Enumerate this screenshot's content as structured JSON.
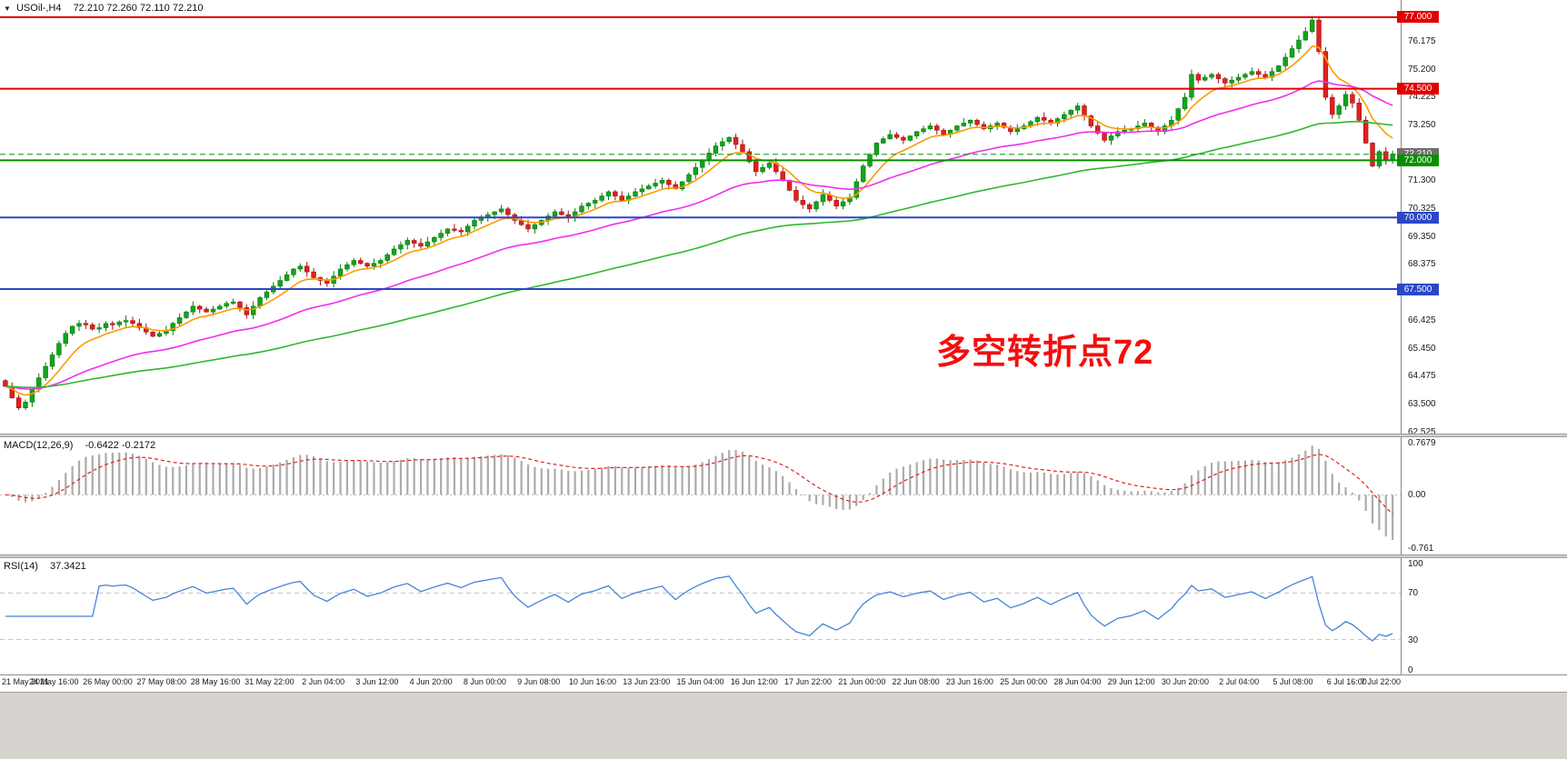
{
  "header": {
    "marker_icon": "▼",
    "symbol": "USOil-,H4",
    "ohlc": "72.210 72.260 72.110 72.210"
  },
  "annotation": {
    "text": "多空转折点72",
    "color": "#f50d0d"
  },
  "panels": {
    "macd": {
      "name": "MACD(12,26,9)",
      "values": "-0.6422 -0.2172",
      "scale": [
        {
          "v": 0.7679,
          "label": "0.7679"
        },
        {
          "v": 0,
          "label": "0.00"
        },
        {
          "v": -0.761,
          "label": "-0.761"
        }
      ],
      "ylim": [
        -0.85,
        0.82
      ]
    },
    "rsi": {
      "name": "RSI(14)",
      "value": "37.3421",
      "period": 14,
      "scale": [
        {
          "v": 100,
          "label": "100"
        },
        {
          "v": 70,
          "label": "70"
        },
        {
          "v": 30,
          "label": "30"
        },
        {
          "v": 0,
          "label": "0"
        }
      ],
      "guides": [
        70,
        30
      ]
    }
  },
  "price_axis": {
    "labels": [
      76.175,
      75.2,
      74.225,
      73.25,
      71.3,
      70.325,
      69.35,
      68.375,
      66.425,
      65.45,
      64.475,
      63.5,
      62.525
    ]
  },
  "chart_data": {
    "type": "candlestick",
    "symbol": "USOil",
    "timeframe": "H4",
    "title": "USOil- H4",
    "ylim": [
      62.45,
      77.6
    ],
    "current_price": 72.21,
    "x_labels": [
      "21 May 2021",
      "24 May 16:00",
      "26 May 00:00",
      "27 May 08:00",
      "28 May 16:00",
      "31 May 22:00",
      "2 Jun 04:00",
      "3 Jun 12:00",
      "4 Jun 20:00",
      "8 Jun 00:00",
      "9 Jun 08:00",
      "10 Jun 16:00",
      "13 Jun 23:00",
      "15 Jun 04:00",
      "16 Jun 12:00",
      "17 Jun 22:00",
      "21 Jun 00:00",
      "22 Jun 08:00",
      "23 Jun 16:00",
      "25 Jun 00:00",
      "28 Jun 04:00",
      "29 Jun 12:00",
      "30 Jun 20:00",
      "2 Jul 04:00",
      "5 Jul 08:00",
      "6 Jul 16:00",
      "7 Jul 22:00"
    ],
    "first_open": 64.3,
    "closes": [
      64.1,
      63.7,
      63.35,
      63.55,
      64.0,
      64.4,
      64.8,
      65.2,
      65.6,
      65.95,
      66.2,
      66.3,
      66.25,
      66.1,
      66.15,
      66.3,
      66.25,
      66.35,
      66.4,
      66.3,
      66.15,
      66.0,
      65.85,
      65.95,
      66.05,
      66.3,
      66.5,
      66.7,
      66.9,
      66.8,
      66.7,
      66.8,
      66.9,
      67.0,
      67.05,
      66.85,
      66.6,
      66.9,
      67.2,
      67.4,
      67.6,
      67.8,
      68.0,
      68.2,
      68.3,
      68.1,
      67.9,
      67.8,
      67.7,
      67.95,
      68.2,
      68.35,
      68.5,
      68.4,
      68.3,
      68.4,
      68.5,
      68.7,
      68.9,
      69.05,
      69.2,
      69.1,
      69.0,
      69.15,
      69.3,
      69.45,
      69.6,
      69.55,
      69.5,
      69.7,
      69.9,
      70.0,
      70.1,
      70.2,
      70.3,
      70.1,
      69.9,
      69.75,
      69.6,
      69.75,
      69.9,
      70.05,
      70.2,
      70.1,
      70.0,
      70.2,
      70.4,
      70.5,
      70.6,
      70.75,
      70.9,
      70.75,
      70.6,
      70.75,
      70.9,
      71.0,
      71.1,
      71.2,
      71.3,
      71.15,
      71.0,
      71.25,
      71.5,
      71.75,
      72.0,
      72.25,
      72.5,
      72.65,
      72.8,
      72.55,
      72.3,
      71.95,
      71.6,
      71.75,
      71.9,
      71.6,
      71.3,
      70.95,
      70.6,
      70.45,
      70.3,
      70.55,
      70.8,
      70.6,
      70.4,
      70.55,
      70.7,
      71.25,
      71.8,
      72.2,
      72.6,
      72.75,
      72.9,
      72.8,
      72.7,
      72.85,
      73.0,
      73.1,
      73.2,
      73.05,
      72.9,
      73.05,
      73.2,
      73.3,
      73.4,
      73.25,
      73.1,
      73.2,
      73.3,
      73.15,
      73.0,
      73.1,
      73.2,
      73.35,
      73.5,
      73.4,
      73.3,
      73.45,
      73.6,
      73.75,
      73.9,
      73.55,
      73.2,
      72.95,
      72.7,
      72.85,
      73.0,
      73.05,
      73.1,
      73.2,
      73.3,
      73.15,
      73.0,
      73.2,
      73.4,
      73.8,
      74.2,
      75.0,
      74.8,
      74.9,
      75.0,
      74.85,
      74.7,
      74.8,
      74.9,
      75.0,
      75.1,
      75.0,
      74.9,
      75.1,
      75.3,
      75.6,
      75.9,
      76.2,
      76.5,
      76.9,
      75.8,
      74.2,
      73.6,
      73.9,
      74.3,
      74.0,
      73.4,
      72.6,
      71.8,
      72.3,
      72.0,
      72.21
    ],
    "levels": [
      {
        "price": 77.0,
        "label": "77.000",
        "color": "#e00000",
        "width": 2
      },
      {
        "price": 74.5,
        "label": "74.500",
        "color": "#e00000",
        "width": 2
      },
      {
        "price": 72.21,
        "label": "72.210",
        "color": "#089000",
        "width": 1,
        "dashed": true,
        "badge": "#6e6e6e"
      },
      {
        "price": 72.0,
        "label": "72.000",
        "color": "#089000",
        "width": 2
      },
      {
        "price": 70.0,
        "label": "70.000",
        "color": "#2a47c8",
        "width": 2
      },
      {
        "price": 67.5,
        "label": "67.500",
        "color": "#2a47c8",
        "width": 2
      }
    ],
    "moving_averages": [
      {
        "name": "fast-ma",
        "period": 8,
        "color": "#ff9a00"
      },
      {
        "name": "medium-ma",
        "period": 34,
        "color": "#ef2fef"
      },
      {
        "name": "slow-ma",
        "period": 90,
        "color": "#2eb82e"
      }
    ],
    "colors": {
      "candle_up": "#12a41b",
      "candle_up_stroke": "#077a0d",
      "candle_down": "#e02020",
      "candle_down_stroke": "#a01010",
      "macd_hist": "#ababab",
      "macd_signal": "#e02020",
      "rsi_line": "#4584d8",
      "guide": "#c0c0c0"
    }
  }
}
